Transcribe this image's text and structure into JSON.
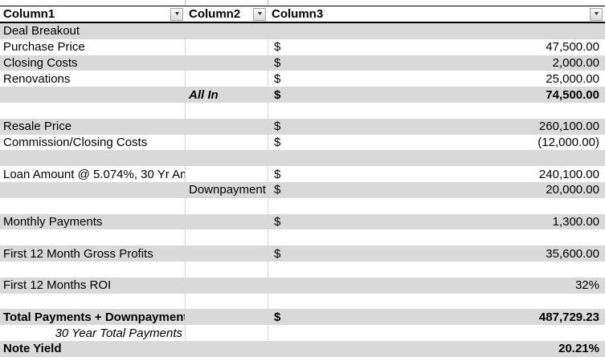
{
  "header": {
    "columns": [
      {
        "label": "Column1"
      },
      {
        "label": "Column2"
      },
      {
        "label": "Column3"
      }
    ]
  },
  "icons": {
    "filter_dropdown_glyph": "▼"
  },
  "colors": {
    "band_gray": "#d9d9d9",
    "header_border": "#000000",
    "gridline": "#d4d4d4"
  },
  "table": {
    "rows": [
      {
        "c1": "Deal Breakout",
        "shaded": true
      },
      {
        "c1": "Purchase Price",
        "dollar": "$",
        "value": "47,500.00"
      },
      {
        "c1": "Closing Costs",
        "dollar": "$",
        "value": "2,000.00",
        "shaded": true
      },
      {
        "c1": "Renovations",
        "dollar": "$",
        "value": "25,000.00"
      },
      {
        "c2": "All In",
        "c2_italic": true,
        "dollar": "$",
        "value": "74,500.00",
        "shaded": true,
        "bold": true
      },
      {},
      {
        "c1": "Resale Price",
        "dollar": "$",
        "value": "260,100.00",
        "shaded": true
      },
      {
        "c1": "Commission/Closing Costs",
        "dollar": "$",
        "value": "(12,000.00)"
      },
      {
        "shaded": true
      },
      {
        "c1": "Loan Amount @ 5.074%, 30 Yr Am",
        "dollar": "$",
        "value": "240,100.00"
      },
      {
        "c2": "Downpayment",
        "dollar": "$",
        "value": "20,000.00",
        "shaded": true
      },
      {},
      {
        "c1": "Monthly Payments",
        "dollar": "$",
        "value": "1,300.00",
        "shaded": true
      },
      {},
      {
        "c1": "First 12 Month Gross Profits",
        "dollar": "$",
        "value": "35,600.00",
        "shaded": true
      },
      {},
      {
        "c1": "First 12 Months ROI",
        "value": "32%",
        "shaded": true
      },
      {},
      {
        "c1": "Total Payments + Downpayment",
        "dollar": "$",
        "value": "487,729.23",
        "shaded": true,
        "bold": true
      },
      {
        "c1": "30 Year Total Payments",
        "c1_italic": true,
        "c1_right": true
      },
      {
        "c1": "Note Yield",
        "value": "20.21%",
        "shaded": true,
        "bold": true
      }
    ]
  }
}
